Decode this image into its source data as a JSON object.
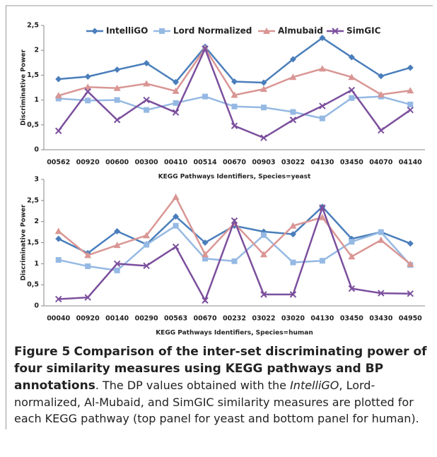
{
  "chart_data": [
    {
      "type": "line",
      "legend": "top",
      "y_label": "Discriminative Power",
      "x_label": "KEGG Pathways Identifiers, Species=yeast",
      "categories": [
        "00562",
        "00920",
        "00600",
        "00300",
        "00410",
        "00514",
        "00670",
        "00903",
        "03022",
        "04130",
        "03450",
        "04070",
        "04140"
      ],
      "ylim": [
        0,
        2.5
      ],
      "yticks": [
        0,
        {
          "value": 0.5,
          "label": "0,5"
        },
        1,
        {
          "value": 1.5,
          "label": "1,5"
        },
        2,
        {
          "value": 2.5,
          "label": "2,5"
        }
      ],
      "series": [
        {
          "name": "IntelliGO",
          "color": "#4a7ebb",
          "marker": "diamond",
          "values": [
            1.42,
            1.47,
            1.61,
            1.74,
            1.36,
            2.07,
            1.37,
            1.35,
            1.82,
            2.25,
            1.86,
            1.48,
            1.65
          ]
        },
        {
          "name": "Lord Normalized",
          "color": "#95b9e3",
          "marker": "square",
          "values": [
            1.03,
            0.99,
            1.0,
            0.8,
            0.94,
            1.07,
            0.87,
            0.85,
            0.76,
            0.63,
            1.04,
            1.07,
            0.91
          ]
        },
        {
          "name": "Almubaid",
          "color": "#d99694",
          "marker": "triangle",
          "values": [
            1.09,
            1.26,
            1.24,
            1.33,
            1.18,
            2.04,
            1.1,
            1.22,
            1.46,
            1.63,
            1.46,
            1.11,
            1.19
          ]
        },
        {
          "name": "SimGIC",
          "color": "#7b4f9d",
          "marker": "x",
          "values": [
            0.38,
            1.17,
            0.6,
            1.0,
            0.75,
            2.03,
            0.48,
            0.24,
            0.6,
            0.88,
            1.2,
            0.39,
            0.8
          ]
        }
      ]
    },
    {
      "type": "line",
      "y_label": "Discriminative Power",
      "x_label": "KEGG Pathways Identifiers, Species=human",
      "categories": [
        "00040",
        "00920",
        "00140",
        "00290",
        "00563",
        "00670",
        "00232",
        "03022",
        "03020",
        "04130",
        "03450",
        "03430",
        "04950"
      ],
      "ylim": [
        0,
        3
      ],
      "yticks": [
        0,
        {
          "value": 0.5,
          "label": "0,5"
        },
        1,
        {
          "value": 1.5,
          "label": "1,5"
        },
        2,
        {
          "value": 2.5,
          "label": "2,5"
        },
        3
      ],
      "series": [
        {
          "color": "#4a7ebb",
          "marker": "diamond",
          "values": [
            1.59,
            1.25,
            1.77,
            1.46,
            2.12,
            1.5,
            1.9,
            1.76,
            1.7,
            2.35,
            1.59,
            1.75,
            1.48
          ]
        },
        {
          "color": "#95b9e3",
          "marker": "square",
          "values": [
            1.09,
            0.94,
            0.84,
            1.45,
            1.9,
            1.12,
            1.06,
            1.68,
            1.03,
            1.07,
            1.52,
            1.75,
            0.97
          ]
        },
        {
          "color": "#d99694",
          "marker": "triangle",
          "values": [
            1.77,
            1.2,
            1.44,
            1.67,
            2.58,
            1.22,
            1.96,
            1.22,
            1.9,
            2.1,
            1.17,
            1.56,
            0.99
          ]
        },
        {
          "color": "#7b4f9d",
          "marker": "x",
          "values": [
            0.16,
            0.2,
            1.0,
            0.95,
            1.4,
            0.13,
            2.02,
            0.27,
            0.27,
            2.33,
            0.41,
            0.3,
            0.29
          ]
        }
      ]
    }
  ],
  "caption": {
    "label": "Figure 5",
    "title": "Comparison of the inter-set discriminating power of four similarity measures using KEGG pathways and BP annotations",
    "text_1": ". The DP values obtained with the ",
    "emphasis": "IntelliGO",
    "text_2": ", Lord-normalized, Al-Mubaid, and SimGIC similarity measures are plotted for each KEGG pathway (top panel for yeast and bottom panel for human)."
  }
}
